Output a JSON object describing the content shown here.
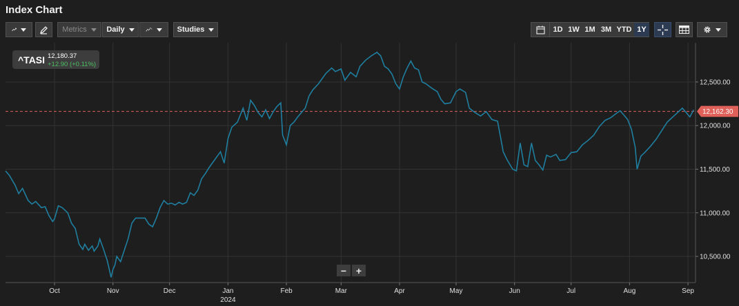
{
  "title": "Index Chart",
  "toolbar": {
    "metrics_label": "Metrics",
    "interval_label": "Daily",
    "studies_label": "Studies",
    "ranges": [
      "1D",
      "1W",
      "1M",
      "3M",
      "YTD",
      "1Y"
    ],
    "active_range": "1Y"
  },
  "legend": {
    "symbol": "^TASI",
    "price": "12,180.37",
    "change": "+12.90 (+0.11%)",
    "change_color": "#4cbf63"
  },
  "zoom": {
    "minus": "−",
    "plus": "+"
  },
  "colors": {
    "line": "#1f7fa0",
    "reference": "#e0605a",
    "grid": "#333333"
  },
  "chart_data": {
    "type": "line",
    "title": "",
    "xlabel": "",
    "ylabel": "",
    "ylim": [
      10200,
      12950
    ],
    "x_range": [
      "2023-09-05",
      "2024-09-05"
    ],
    "y_ticks": [
      "10,500.00",
      "11,000.00",
      "11,500.00",
      "12,000.00",
      "12,500.00"
    ],
    "x_ticks": [
      {
        "label": "Oct",
        "date": "2023-10-01"
      },
      {
        "label": "Nov",
        "date": "2023-11-01"
      },
      {
        "label": "Dec",
        "date": "2023-12-01"
      },
      {
        "label": "Jan",
        "date": "2024-01-01",
        "year": "2024"
      },
      {
        "label": "Feb",
        "date": "2024-02-01"
      },
      {
        "label": "Mar",
        "date": "2024-03-01"
      },
      {
        "label": "Apr",
        "date": "2024-04-01"
      },
      {
        "label": "May",
        "date": "2024-05-01"
      },
      {
        "label": "Jun",
        "date": "2024-06-01"
      },
      {
        "label": "Jul",
        "date": "2024-07-01"
      },
      {
        "label": "Aug",
        "date": "2024-08-01"
      },
      {
        "label": "Sep",
        "date": "2024-09-01"
      }
    ],
    "reference_line": {
      "value": 12162.3,
      "label": "12,162.30"
    },
    "grid": true,
    "series": [
      {
        "points": [
          [
            "2023-09-05",
            11480
          ],
          [
            "2023-09-07",
            11430
          ],
          [
            "2023-09-10",
            11320
          ],
          [
            "2023-09-12",
            11220
          ],
          [
            "2023-09-14",
            11280
          ],
          [
            "2023-09-17",
            11140
          ],
          [
            "2023-09-19",
            11100
          ],
          [
            "2023-09-21",
            11130
          ],
          [
            "2023-09-24",
            11060
          ],
          [
            "2023-09-26",
            11070
          ],
          [
            "2023-09-28",
            10970
          ],
          [
            "2023-09-30",
            10900
          ],
          [
            "2023-10-01",
            10930
          ],
          [
            "2023-10-03",
            11080
          ],
          [
            "2023-10-05",
            11060
          ],
          [
            "2023-10-08",
            11000
          ],
          [
            "2023-10-10",
            10880
          ],
          [
            "2023-10-12",
            10820
          ],
          [
            "2023-10-14",
            10640
          ],
          [
            "2023-10-16",
            10580
          ],
          [
            "2023-10-17",
            10640
          ],
          [
            "2023-10-19",
            10570
          ],
          [
            "2023-10-21",
            10620
          ],
          [
            "2023-10-22",
            10560
          ],
          [
            "2023-10-24",
            10620
          ],
          [
            "2023-10-25",
            10700
          ],
          [
            "2023-10-27",
            10580
          ],
          [
            "2023-10-29",
            10450
          ],
          [
            "2023-10-31",
            10260
          ],
          [
            "2023-11-01",
            10350
          ],
          [
            "2023-11-02",
            10400
          ],
          [
            "2023-11-03",
            10500
          ],
          [
            "2023-11-05",
            10440
          ],
          [
            "2023-11-07",
            10570
          ],
          [
            "2023-11-09",
            10700
          ],
          [
            "2023-11-11",
            10880
          ],
          [
            "2023-11-13",
            10940
          ],
          [
            "2023-11-15",
            10940
          ],
          [
            "2023-11-18",
            10940
          ],
          [
            "2023-11-20",
            10870
          ],
          [
            "2023-11-22",
            10840
          ],
          [
            "2023-11-24",
            10940
          ],
          [
            "2023-11-26",
            11060
          ],
          [
            "2023-11-28",
            11140
          ],
          [
            "2023-11-30",
            11100
          ],
          [
            "2023-12-02",
            11110
          ],
          [
            "2023-12-04",
            11090
          ],
          [
            "2023-12-06",
            11120
          ],
          [
            "2023-12-08",
            11100
          ],
          [
            "2023-12-10",
            11120
          ],
          [
            "2023-12-12",
            11230
          ],
          [
            "2023-12-14",
            11200
          ],
          [
            "2023-12-16",
            11260
          ],
          [
            "2023-12-18",
            11390
          ],
          [
            "2023-12-20",
            11450
          ],
          [
            "2023-12-22",
            11520
          ],
          [
            "2023-12-25",
            11610
          ],
          [
            "2023-12-28",
            11700
          ],
          [
            "2023-12-30",
            11570
          ],
          [
            "2024-01-01",
            11850
          ],
          [
            "2024-01-03",
            11980
          ],
          [
            "2024-01-06",
            12040
          ],
          [
            "2024-01-09",
            12200
          ],
          [
            "2024-01-11",
            12060
          ],
          [
            "2024-01-13",
            12290
          ],
          [
            "2024-01-15",
            12230
          ],
          [
            "2024-01-17",
            12150
          ],
          [
            "2024-01-19",
            12100
          ],
          [
            "2024-01-21",
            12180
          ],
          [
            "2024-01-23",
            12080
          ],
          [
            "2024-01-25",
            12160
          ],
          [
            "2024-01-27",
            12220
          ],
          [
            "2024-01-29",
            12260
          ],
          [
            "2024-01-30",
            11890
          ],
          [
            "2024-02-01",
            11780
          ],
          [
            "2024-02-03",
            12000
          ],
          [
            "2024-02-05",
            12040
          ],
          [
            "2024-02-07",
            12100
          ],
          [
            "2024-02-09",
            12150
          ],
          [
            "2024-02-11",
            12200
          ],
          [
            "2024-02-13",
            12340
          ],
          [
            "2024-02-15",
            12410
          ],
          [
            "2024-02-18",
            12480
          ],
          [
            "2024-02-20",
            12540
          ],
          [
            "2024-02-22",
            12600
          ],
          [
            "2024-02-25",
            12660
          ],
          [
            "2024-02-27",
            12620
          ],
          [
            "2024-03-01",
            12650
          ],
          [
            "2024-03-03",
            12520
          ],
          [
            "2024-03-06",
            12610
          ],
          [
            "2024-03-09",
            12560
          ],
          [
            "2024-03-11",
            12680
          ],
          [
            "2024-03-14",
            12750
          ],
          [
            "2024-03-17",
            12800
          ],
          [
            "2024-03-20",
            12840
          ],
          [
            "2024-03-22",
            12800
          ],
          [
            "2024-03-24",
            12680
          ],
          [
            "2024-03-26",
            12650
          ],
          [
            "2024-03-28",
            12590
          ],
          [
            "2024-03-30",
            12480
          ],
          [
            "2024-04-01",
            12420
          ],
          [
            "2024-04-03",
            12560
          ],
          [
            "2024-04-05",
            12660
          ],
          [
            "2024-04-07",
            12740
          ],
          [
            "2024-04-09",
            12660
          ],
          [
            "2024-04-11",
            12640
          ],
          [
            "2024-04-13",
            12500
          ],
          [
            "2024-04-15",
            12480
          ],
          [
            "2024-04-18",
            12430
          ],
          [
            "2024-04-21",
            12390
          ],
          [
            "2024-04-23",
            12300
          ],
          [
            "2024-04-25",
            12250
          ],
          [
            "2024-04-28",
            12260
          ],
          [
            "2024-05-01",
            12390
          ],
          [
            "2024-05-03",
            12420
          ],
          [
            "2024-05-06",
            12380
          ],
          [
            "2024-05-08",
            12200
          ],
          [
            "2024-05-11",
            12150
          ],
          [
            "2024-05-14",
            12110
          ],
          [
            "2024-05-17",
            12160
          ],
          [
            "2024-05-20",
            12070
          ],
          [
            "2024-05-23",
            12050
          ],
          [
            "2024-05-26",
            11700
          ],
          [
            "2024-05-28",
            11610
          ],
          [
            "2024-05-31",
            11500
          ],
          [
            "2024-06-02",
            11480
          ],
          [
            "2024-06-04",
            11800
          ],
          [
            "2024-06-06",
            11550
          ],
          [
            "2024-06-08",
            11530
          ],
          [
            "2024-06-10",
            11800
          ],
          [
            "2024-06-12",
            11600
          ],
          [
            "2024-06-14",
            11550
          ],
          [
            "2024-06-16",
            11490
          ],
          [
            "2024-06-18",
            11660
          ],
          [
            "2024-06-20",
            11640
          ],
          [
            "2024-06-23",
            11670
          ],
          [
            "2024-06-25",
            11600
          ],
          [
            "2024-06-28",
            11610
          ],
          [
            "2024-07-01",
            11690
          ],
          [
            "2024-07-04",
            11700
          ],
          [
            "2024-07-07",
            11780
          ],
          [
            "2024-07-10",
            11830
          ],
          [
            "2024-07-13",
            11890
          ],
          [
            "2024-07-16",
            11990
          ],
          [
            "2024-07-19",
            12060
          ],
          [
            "2024-07-22",
            12090
          ],
          [
            "2024-07-25",
            12140
          ],
          [
            "2024-07-27",
            12170
          ],
          [
            "2024-07-29",
            12120
          ],
          [
            "2024-07-31",
            12070
          ],
          [
            "2024-08-02",
            11960
          ],
          [
            "2024-08-04",
            11750
          ],
          [
            "2024-08-05",
            11500
          ],
          [
            "2024-08-07",
            11650
          ],
          [
            "2024-08-09",
            11690
          ],
          [
            "2024-08-12",
            11760
          ],
          [
            "2024-08-15",
            11840
          ],
          [
            "2024-08-18",
            11940
          ],
          [
            "2024-08-21",
            12040
          ],
          [
            "2024-08-24",
            12100
          ],
          [
            "2024-08-27",
            12160
          ],
          [
            "2024-08-29",
            12200
          ],
          [
            "2024-08-31",
            12150
          ],
          [
            "2024-09-02",
            12100
          ],
          [
            "2024-09-04",
            12180
          ]
        ]
      }
    ]
  }
}
